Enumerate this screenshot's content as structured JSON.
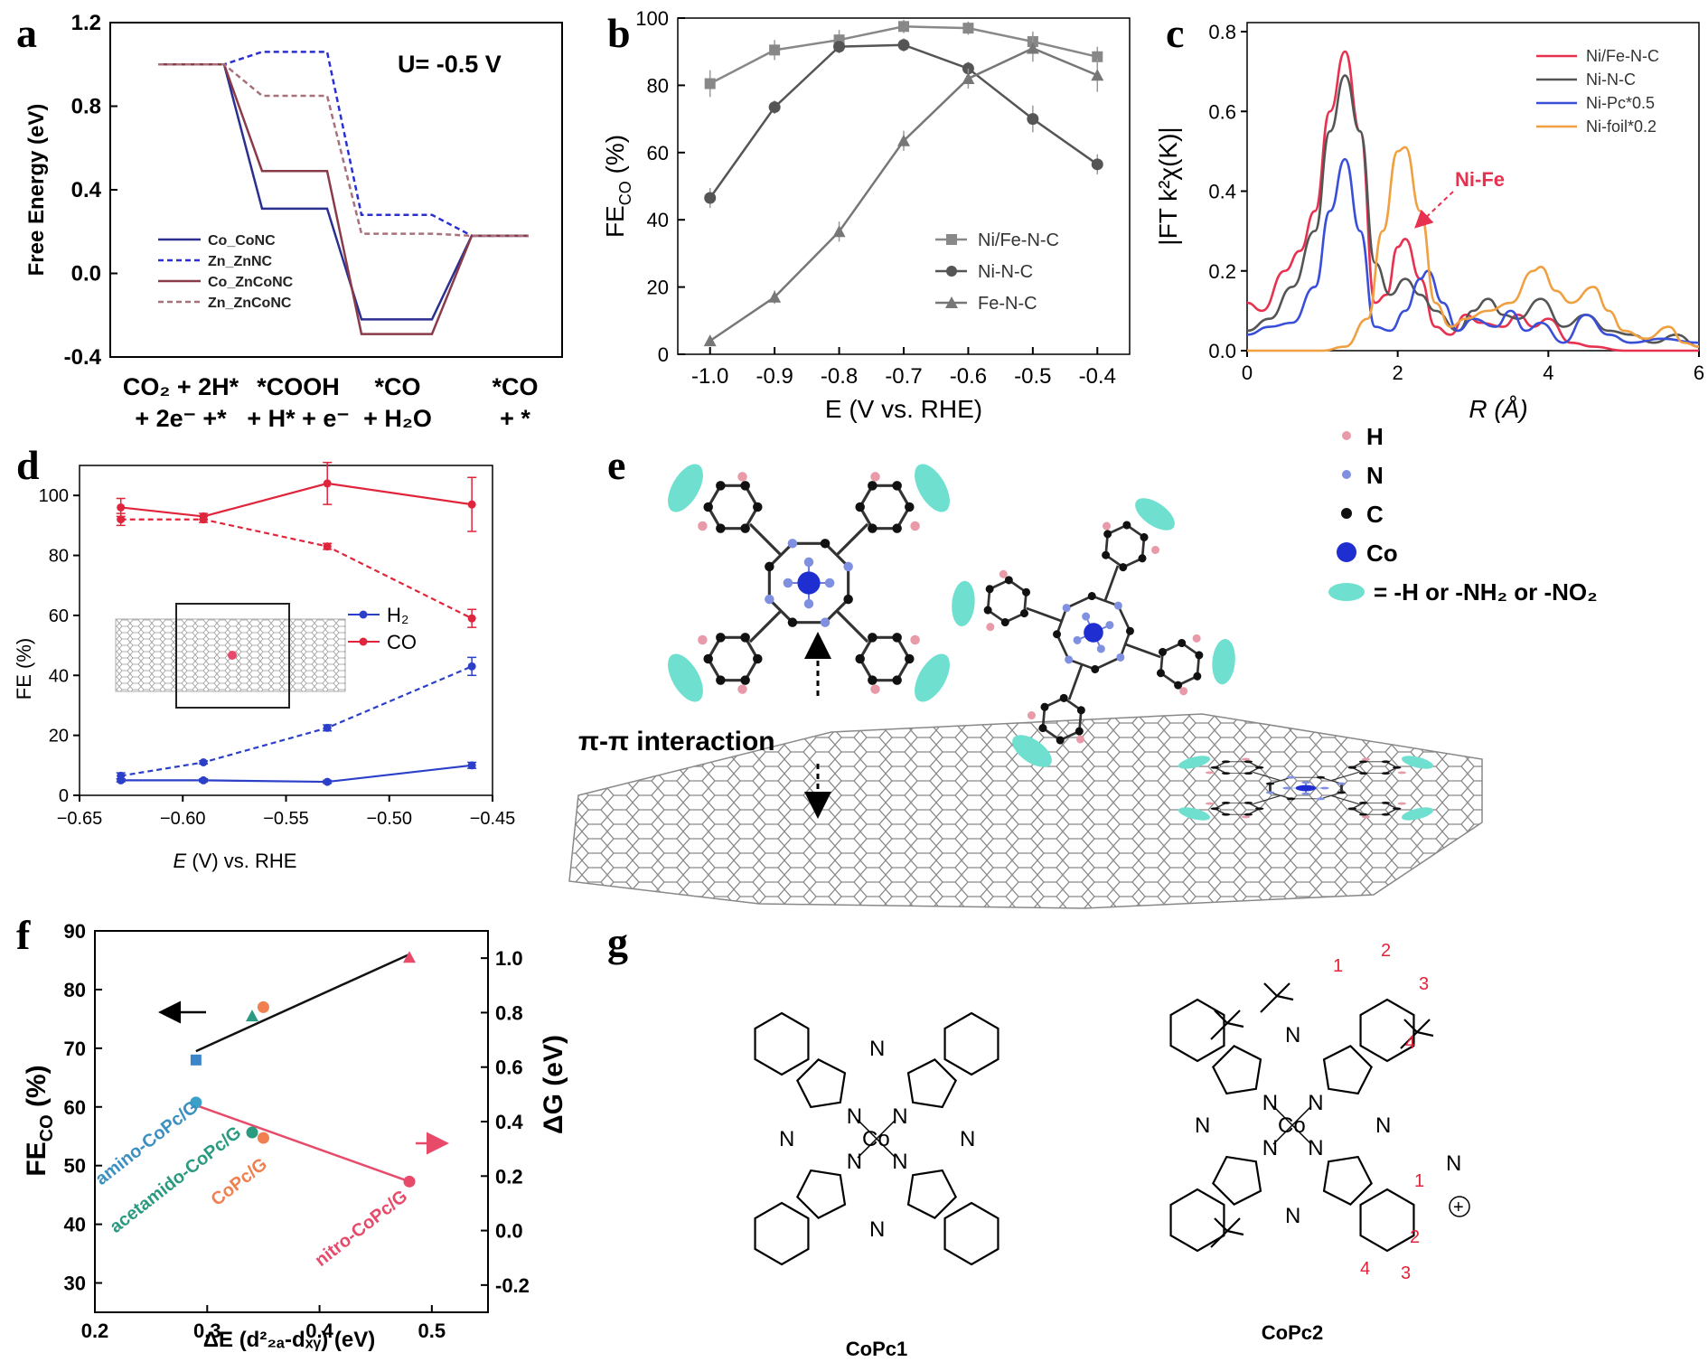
{
  "panels": {
    "a": "a",
    "b": "b",
    "c": "c",
    "d": "d",
    "e": "e",
    "f": "f",
    "g": "g"
  },
  "chart_data": [
    {
      "id": "a",
      "type": "line",
      "subtype": "free-energy-diagram",
      "annotation": "U= -0.5 V",
      "ylabel": "Free Energy (eV)",
      "ylim": [
        -0.4,
        1.2
      ],
      "yticks": [
        "1.2",
        "0.8",
        "0.4",
        "0.0",
        "-0.4"
      ],
      "categories": [
        [
          "CO₂ + 2H*",
          "+ 2e⁻ +*"
        ],
        [
          "*COOH",
          "+ H* + e⁻"
        ],
        [
          "*CO",
          "+ H₂O"
        ],
        [
          "*CO",
          "+ *"
        ]
      ],
      "series": [
        {
          "name": "Co_CoNC",
          "values": [
            1.0,
            0.31,
            -0.22,
            0.18
          ],
          "color": "#2b2f8f",
          "dash": false
        },
        {
          "name": "Zn_ZnNC",
          "values": [
            1.0,
            1.06,
            0.28,
            0.18
          ],
          "color": "#2b2fd0",
          "dash": true
        },
        {
          "name": "Co_ZnCoNC",
          "values": [
            1.0,
            0.49,
            -0.29,
            0.18
          ],
          "color": "#8a3b4a",
          "dash": false
        },
        {
          "name": "Zn_ZnCoNC",
          "values": [
            1.0,
            0.85,
            0.19,
            0.18
          ],
          "color": "#a8707a",
          "dash": true
        }
      ]
    },
    {
      "id": "b",
      "type": "line",
      "xlabel": "E (V vs. RHE)",
      "ylabel_main": "FE",
      "ylabel_sub": "CO",
      "ylabel_tail": " (%)",
      "ylim": [
        0,
        100
      ],
      "x": [
        -1.0,
        -0.9,
        -0.8,
        -0.7,
        -0.6,
        -0.5,
        -0.4
      ],
      "xticks": [
        "-1.0",
        "-0.9",
        "-0.8",
        "-0.7",
        "-0.6",
        "-0.5",
        "-0.4"
      ],
      "yticks": [
        "0",
        "20",
        "40",
        "60",
        "80",
        "100"
      ],
      "series": [
        {
          "name": "Ni/Fe-N-C",
          "marker": "square",
          "values": [
            80.5,
            90.5,
            93.5,
            97.5,
            97.0,
            93.0,
            88.5
          ],
          "err": [
            4,
            3,
            3,
            2,
            2,
            3,
            3
          ]
        },
        {
          "name": "Ni-N-C",
          "marker": "circle",
          "values": [
            46.5,
            73.5,
            91.5,
            92.0,
            85.0,
            70.0,
            56.5
          ],
          "err": [
            3,
            2,
            2,
            2,
            2,
            4,
            3
          ]
        },
        {
          "name": "Fe-N-C",
          "marker": "triangle",
          "values": [
            4.0,
            17.0,
            36.5,
            63.5,
            82.0,
            91.0,
            83.0
          ],
          "err": [
            1,
            2,
            3,
            3,
            3,
            4,
            5
          ]
        }
      ]
    },
    {
      "id": "c",
      "type": "line",
      "xlabel": "R (Å)",
      "ylabel": "|FT k²χ(K)|",
      "xlim": [
        0,
        6
      ],
      "ylim": [
        0,
        0.8
      ],
      "xticks": [
        "0",
        "2",
        "4",
        "6"
      ],
      "yticks": [
        "0.0",
        "0.2",
        "0.4",
        "0.6",
        "0.8"
      ],
      "annotation": "Ni-Fe",
      "series": [
        {
          "name": "Ni/Fe-N-C",
          "color": "#e8304f",
          "points": [
            [
              0,
              0.12
            ],
            [
              0.2,
              0.1
            ],
            [
              0.5,
              0.2
            ],
            [
              0.7,
              0.25
            ],
            [
              0.9,
              0.35
            ],
            [
              1.1,
              0.6
            ],
            [
              1.3,
              0.75
            ],
            [
              1.5,
              0.55
            ],
            [
              1.7,
              0.12
            ],
            [
              1.85,
              0.14
            ],
            [
              2.0,
              0.26
            ],
            [
              2.1,
              0.28
            ],
            [
              2.3,
              0.18
            ],
            [
              2.5,
              0.06
            ],
            [
              2.7,
              0.04
            ],
            [
              2.9,
              0.09
            ],
            [
              3.1,
              0.07
            ],
            [
              3.4,
              0.06
            ],
            [
              3.6,
              0.09
            ],
            [
              3.8,
              0.06
            ],
            [
              4.0,
              0.08
            ],
            [
              4.3,
              0.02
            ],
            [
              4.6,
              0.01
            ],
            [
              5.0,
              0.0
            ],
            [
              6,
              0.0
            ]
          ]
        },
        {
          "name": "Ni-N-C",
          "color": "#555555",
          "points": [
            [
              0,
              0.05
            ],
            [
              0.3,
              0.08
            ],
            [
              0.6,
              0.16
            ],
            [
              0.9,
              0.3
            ],
            [
              1.1,
              0.55
            ],
            [
              1.3,
              0.69
            ],
            [
              1.5,
              0.55
            ],
            [
              1.7,
              0.22
            ],
            [
              1.9,
              0.14
            ],
            [
              2.1,
              0.18
            ],
            [
              2.3,
              0.14
            ],
            [
              2.5,
              0.1
            ],
            [
              2.8,
              0.05
            ],
            [
              3.0,
              0.1
            ],
            [
              3.2,
              0.13
            ],
            [
              3.4,
              0.09
            ],
            [
              3.6,
              0.08
            ],
            [
              3.9,
              0.13
            ],
            [
              4.2,
              0.06
            ],
            [
              4.5,
              0.09
            ],
            [
              4.8,
              0.05
            ],
            [
              5.1,
              0.04
            ],
            [
              5.4,
              0.02
            ],
            [
              5.7,
              0.04
            ],
            [
              6,
              0.01
            ]
          ]
        },
        {
          "name": "Ni-Pc*0.5",
          "color": "#3a4fd8",
          "points": [
            [
              0,
              0.04
            ],
            [
              0.3,
              0.06
            ],
            [
              0.6,
              0.07
            ],
            [
              0.9,
              0.16
            ],
            [
              1.1,
              0.35
            ],
            [
              1.3,
              0.48
            ],
            [
              1.5,
              0.3
            ],
            [
              1.7,
              0.06
            ],
            [
              1.9,
              0.05
            ],
            [
              2.1,
              0.1
            ],
            [
              2.3,
              0.18
            ],
            [
              2.4,
              0.2
            ],
            [
              2.6,
              0.12
            ],
            [
              2.8,
              0.05
            ],
            [
              3.0,
              0.08
            ],
            [
              3.3,
              0.06
            ],
            [
              3.5,
              0.1
            ],
            [
              3.7,
              0.05
            ],
            [
              3.9,
              0.07
            ],
            [
              4.2,
              0.02
            ],
            [
              4.5,
              0.09
            ],
            [
              4.8,
              0.04
            ],
            [
              5.1,
              0.02
            ],
            [
              5.5,
              0.03
            ],
            [
              6,
              0.02
            ]
          ]
        },
        {
          "name": "Ni-foil*0.2",
          "color": "#f0a040",
          "points": [
            [
              0,
              0.0
            ],
            [
              1.0,
              0.0
            ],
            [
              1.3,
              0.01
            ],
            [
              1.6,
              0.08
            ],
            [
              1.8,
              0.3
            ],
            [
              2.0,
              0.5
            ],
            [
              2.1,
              0.51
            ],
            [
              2.3,
              0.35
            ],
            [
              2.5,
              0.12
            ],
            [
              2.7,
              0.06
            ],
            [
              2.9,
              0.08
            ],
            [
              3.2,
              0.1
            ],
            [
              3.5,
              0.12
            ],
            [
              3.8,
              0.2
            ],
            [
              3.9,
              0.21
            ],
            [
              4.1,
              0.15
            ],
            [
              4.3,
              0.12
            ],
            [
              4.6,
              0.16
            ],
            [
              4.8,
              0.1
            ],
            [
              5.0,
              0.05
            ],
            [
              5.3,
              0.03
            ],
            [
              5.6,
              0.06
            ],
            [
              5.8,
              0.02
            ],
            [
              6,
              0.01
            ]
          ]
        }
      ]
    },
    {
      "id": "d",
      "type": "line",
      "xlabel_italic": "E",
      "xlabel_tail": " (V) vs. RHE",
      "ylabel": "FE (%)",
      "xlim": [
        -0.65,
        -0.45
      ],
      "ylim": [
        0,
        110
      ],
      "xticks": [
        "−0.65",
        "−0.60",
        "−0.55",
        "−0.50",
        "−0.45"
      ],
      "yticks": [
        "0",
        "20",
        "40",
        "60",
        "80",
        "100"
      ],
      "x": [
        -0.63,
        -0.59,
        -0.53,
        -0.46
      ],
      "legend": [
        "H₂",
        "CO"
      ],
      "series": [
        {
          "name": "CO (solid)",
          "color": "#e0243b",
          "dash": false,
          "values": [
            96,
            93,
            104,
            97
          ],
          "err": [
            3,
            1,
            7,
            9
          ]
        },
        {
          "name": "CO (dashed)",
          "color": "#e0243b",
          "dash": true,
          "values": [
            92,
            92,
            83,
            59
          ],
          "err": [
            2,
            1,
            1,
            3
          ]
        },
        {
          "name": "H2 (dashed)",
          "color": "#2b3fc8",
          "dash": true,
          "values": [
            6.5,
            11,
            22.5,
            43
          ],
          "err": [
            1,
            0.5,
            1,
            3
          ]
        },
        {
          "name": "H2 (solid)",
          "color": "#2b3fc8",
          "dash": false,
          "values": [
            5,
            5,
            4.5,
            10
          ],
          "err": [
            0.5,
            0.5,
            0.5,
            1
          ]
        }
      ]
    },
    {
      "id": "e",
      "type": "diagram",
      "annotation": "π-π interaction",
      "legend": [
        "H",
        "N",
        "C",
        "Co",
        "= -H or -NH₂ or -NO₂"
      ]
    },
    {
      "id": "f",
      "type": "scatter",
      "xlabel": "ΔE (d²₂ₐ-dₓᵧ) (eV)",
      "xlabel_main": "ΔE (d",
      "xlabel_tail": ") (eV)",
      "ylabel_left_main": "FE",
      "ylabel_left_sub": "CO",
      "ylabel_left_tail": " (%)",
      "ylabel_right": "ΔG (eV)",
      "xlim": [
        0.2,
        0.55
      ],
      "ylim_left": [
        25,
        90
      ],
      "ylim_right": [
        -0.3,
        1.1
      ],
      "xticks": [
        "0.2",
        "0.3",
        "0.4",
        "0.5"
      ],
      "yticks_left": [
        "30",
        "40",
        "50",
        "60",
        "70",
        "80",
        "90"
      ],
      "yticks_right": [
        "-0.2",
        "0.0",
        "0.2",
        "0.4",
        "0.6",
        "0.8",
        "1.0"
      ],
      "labels": [
        "amino-CoPc/G",
        "acetamido-CoPc/G",
        "CoPc/G",
        "nitro-CoPc/G"
      ],
      "fe_points": [
        {
          "x": 0.29,
          "y": 68,
          "color": "#3a86c8",
          "marker": "square"
        },
        {
          "x": 0.34,
          "y": 75.5,
          "color": "#2a9a80",
          "marker": "triangle"
        },
        {
          "x": 0.35,
          "y": 77,
          "color": "#f08050",
          "marker": "circle"
        },
        {
          "x": 0.48,
          "y": 85.5,
          "color": "#e84a6a",
          "marker": "triangle"
        }
      ],
      "dg_points": [
        {
          "x": 0.29,
          "y": 0.47,
          "color": "#3aa0c8"
        },
        {
          "x": 0.34,
          "y": 0.36,
          "color": "#2a9a80"
        },
        {
          "x": 0.35,
          "y": 0.34,
          "color": "#f08050"
        },
        {
          "x": 0.48,
          "y": 0.18,
          "color": "#e84a6a"
        }
      ],
      "label_colors": [
        "#3a90c0",
        "#2a9a80",
        "#f08050",
        "#e84a6a"
      ]
    },
    {
      "id": "g",
      "type": "diagram",
      "structures": [
        "CoPc1",
        "CoPc2"
      ],
      "atoms": {
        "n": "N",
        "co": "Co"
      },
      "numbers": [
        "1",
        "2",
        "3",
        "4"
      ]
    }
  ]
}
